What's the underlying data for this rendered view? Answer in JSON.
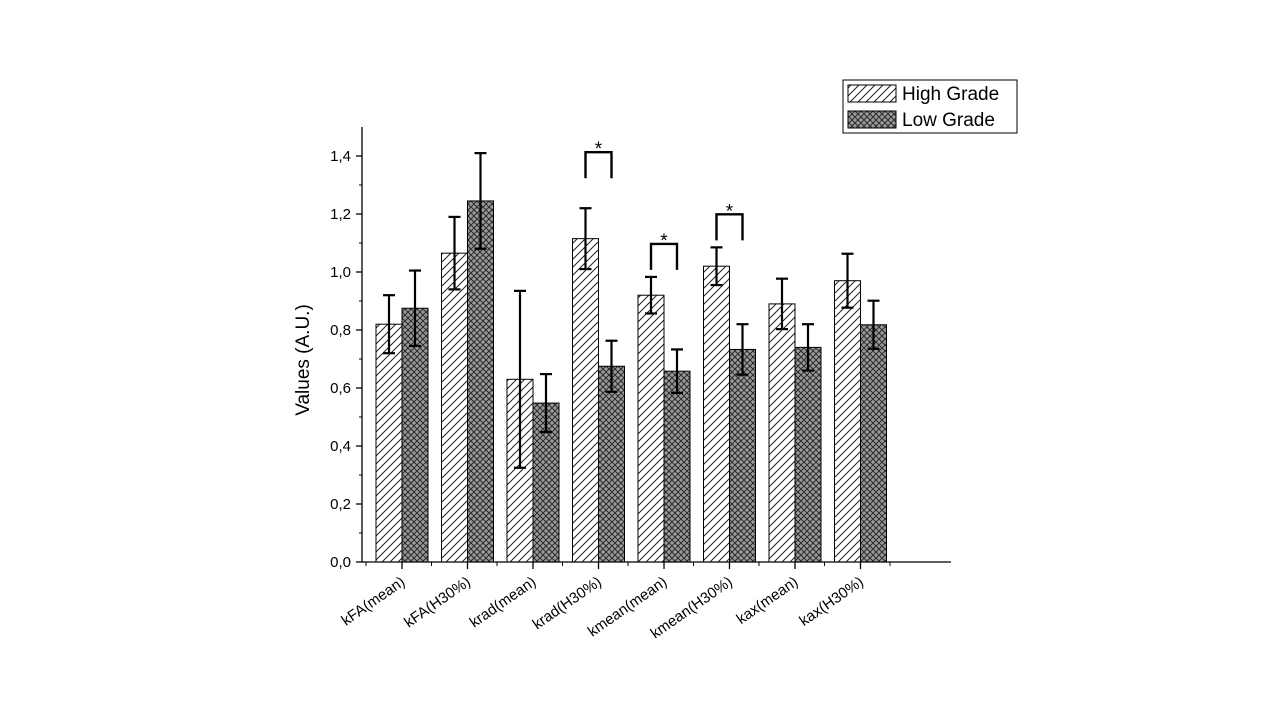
{
  "chart_data": {
    "type": "bar",
    "title": "",
    "xlabel": "",
    "ylabel": "Values (A.U.)",
    "ylim": [
      0,
      1.5
    ],
    "y_ticks": [
      "0,0",
      "0,2",
      "0,4",
      "0,6",
      "0,8",
      "1,0",
      "1,2",
      "1,4"
    ],
    "y_tick_values": [
      0,
      0.2,
      0.4,
      0.6,
      0.8,
      1.0,
      1.2,
      1.4
    ],
    "categories": [
      "kFA(mean)",
      "kFA(H30%)",
      "krad(mean)",
      "krad(H30%)",
      "kmean(mean)",
      "kmean(H30%)",
      "kax(mean)",
      "kax(H30%)"
    ],
    "series": [
      {
        "name": "High Grade",
        "pattern": "diagonal-hatch",
        "values": [
          0.82,
          1.065,
          0.63,
          1.115,
          0.92,
          1.02,
          0.89,
          0.97
        ],
        "errors": [
          0.1,
          0.125,
          0.305,
          0.105,
          0.063,
          0.065,
          0.087,
          0.093
        ]
      },
      {
        "name": "Low Grade",
        "pattern": "crosshatch",
        "values": [
          0.875,
          1.245,
          0.548,
          0.675,
          0.658,
          0.733,
          0.74,
          0.818
        ],
        "errors": [
          0.13,
          0.165,
          0.1,
          0.088,
          0.075,
          0.087,
          0.08,
          0.083
        ]
      }
    ],
    "significance": [
      {
        "category_index": 3,
        "label": "*"
      },
      {
        "category_index": 4,
        "label": "*"
      },
      {
        "category_index": 5,
        "label": "*"
      }
    ],
    "legend_position": "top-right",
    "grid": false
  }
}
